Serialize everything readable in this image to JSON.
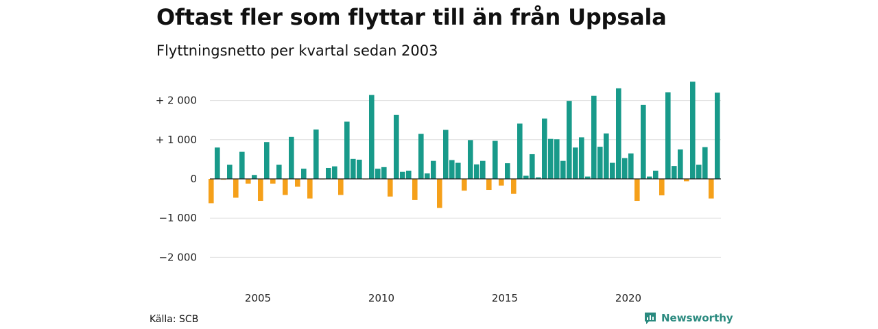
{
  "header": {
    "title": "Oftast fler som flyttar till än från Uppsala",
    "subtitle": "Flyttningsnetto per kvartal sedan 2003"
  },
  "footer": {
    "source": "Källa: SCB",
    "brand": "Newsworthy",
    "brand_icon": "chart-logo-icon"
  },
  "colors": {
    "positive": "#189a8a",
    "negative": "#f5a01a",
    "brand": "#2a8a7f",
    "grid": "#dddddd"
  },
  "chart_data": {
    "type": "bar",
    "x_start": "2003 Q1",
    "frequency": "quarterly",
    "ylim": [
      -2200,
      2600
    ],
    "y_ticks": [
      2000,
      1000,
      0,
      -1000,
      -2000
    ],
    "y_tick_labels": [
      "+ 2 000",
      "+ 1 000",
      "0",
      "−1 000",
      "−2 000"
    ],
    "x_ticks": [
      {
        "year": 2005,
        "label": "2005"
      },
      {
        "year": 2010,
        "label": "2010"
      },
      {
        "year": 2015,
        "label": "2015"
      },
      {
        "year": 2020,
        "label": "2020"
      }
    ],
    "grid": true,
    "legend": false,
    "values": [
      -620,
      800,
      -20,
      360,
      -480,
      690,
      -120,
      100,
      -560,
      940,
      -120,
      360,
      -410,
      1070,
      -200,
      260,
      -500,
      1260,
      -10,
      280,
      320,
      -410,
      1460,
      510,
      490,
      -10,
      2140,
      260,
      300,
      -450,
      1630,
      180,
      210,
      -540,
      1150,
      140,
      460,
      -740,
      1250,
      480,
      410,
      -300,
      990,
      370,
      460,
      -280,
      970,
      -170,
      400,
      -380,
      1410,
      80,
      630,
      40,
      1540,
      1020,
      1010,
      460,
      1990,
      800,
      1060,
      60,
      2120,
      820,
      1160,
      410,
      2310,
      530,
      650,
      -560,
      1890,
      60,
      210,
      -420,
      2210,
      330,
      750,
      -60,
      2480,
      360,
      810,
      -500,
      2200
    ]
  }
}
